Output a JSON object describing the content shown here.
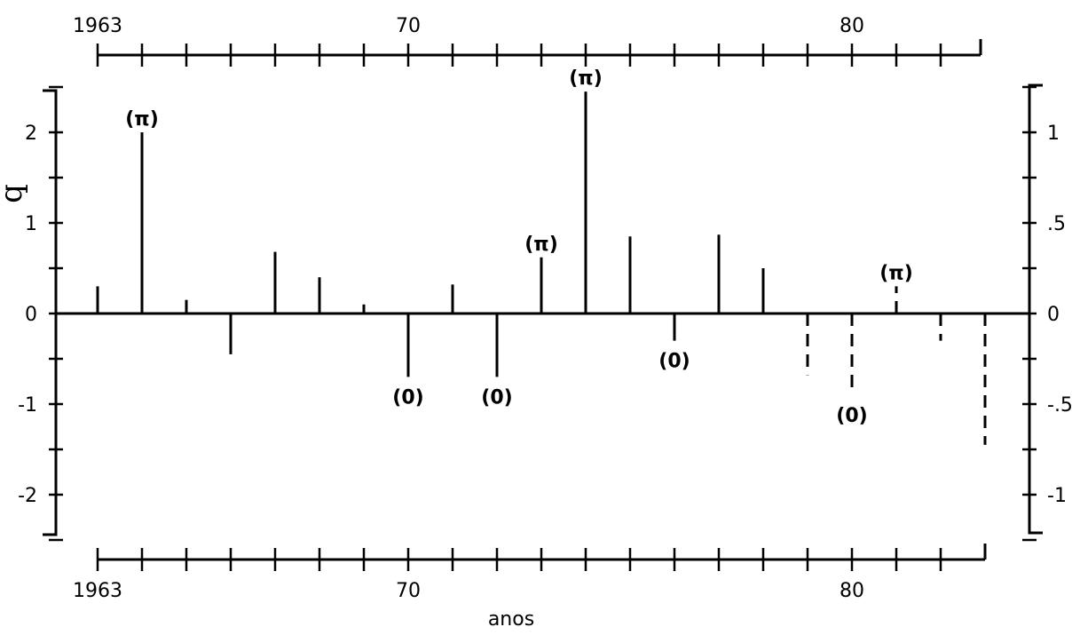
{
  "chart_data": {
    "type": "bar",
    "xlabel": "anos",
    "ylabel_left": "q",
    "xlim": [
      1963,
      1982.8
    ],
    "ylim_left": [
      -2.5,
      2.5
    ],
    "ylim_right": [
      -1.25,
      1.25
    ],
    "x_tick_labels_top": [
      {
        "x": 1963,
        "label": "1963"
      },
      {
        "x": 1970,
        "label": "70"
      },
      {
        "x": 1980,
        "label": "80"
      }
    ],
    "x_tick_labels_bottom": [
      {
        "x": 1963,
        "label": "1963"
      },
      {
        "x": 1970,
        "label": "70"
      },
      {
        "x": 1980,
        "label": "80"
      }
    ],
    "y_tick_labels_left": [
      {
        "y": 2,
        "label": "2"
      },
      {
        "y": 1,
        "label": "1"
      },
      {
        "y": 0,
        "label": "0"
      },
      {
        "y": -1,
        "label": "-1"
      },
      {
        "y": -2,
        "label": "-2"
      }
    ],
    "y_tick_labels_right": [
      {
        "y": 1,
        "label": "1"
      },
      {
        "y": 0.5,
        "label": ".5"
      },
      {
        "y": 0,
        "label": "0"
      },
      {
        "y": -0.5,
        "label": "-.5"
      },
      {
        "y": -1,
        "label": "-1"
      }
    ],
    "series": [
      {
        "style": "solid",
        "x": [
          1963,
          1964,
          1965,
          1966,
          1967,
          1968,
          1969,
          1970,
          1971,
          1972,
          1973,
          1974,
          1975,
          1976,
          1977,
          1978
        ],
        "values": [
          0.3,
          2.0,
          0.15,
          -0.45,
          0.68,
          0.4,
          0.1,
          -0.7,
          0.32,
          -0.7,
          0.62,
          2.45,
          0.85,
          -0.3,
          0.87,
          0.5
        ]
      },
      {
        "style": "dashed",
        "x": [
          1979,
          1980,
          1981,
          1982,
          1983
        ],
        "values": [
          -0.68,
          -0.9,
          0.3,
          -0.3,
          -1.45
        ]
      }
    ],
    "annotations": [
      {
        "x": 1964,
        "y": 2.0,
        "text": "(π)"
      },
      {
        "x": 1973,
        "y": 0.62,
        "text": "(π)"
      },
      {
        "x": 1974,
        "y": 2.45,
        "text": "(π)"
      },
      {
        "x": 1981,
        "y": 0.3,
        "text": "(π)"
      },
      {
        "x": 1970,
        "y": -0.7,
        "text": "(0)"
      },
      {
        "x": 1972,
        "y": -0.7,
        "text": "(0)"
      },
      {
        "x": 1976,
        "y": -0.3,
        "text": "(0)"
      },
      {
        "x": 1980,
        "y": -0.9,
        "text": "(0)"
      }
    ]
  }
}
